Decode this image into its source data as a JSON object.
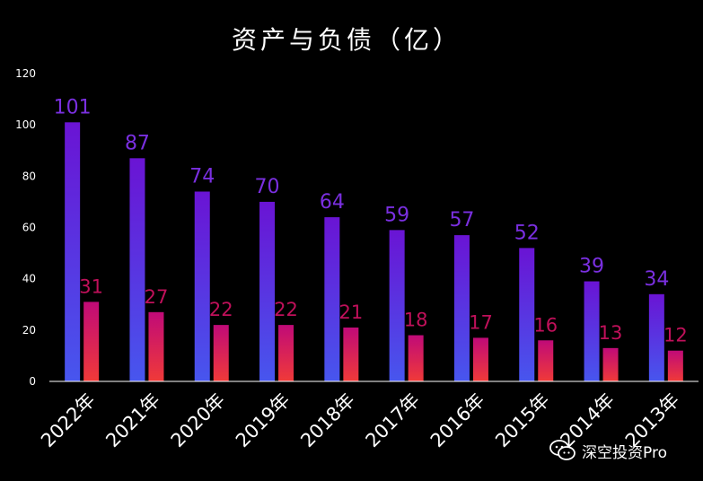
{
  "chart_data": {
    "type": "bar",
    "title": "资产与负债（亿）",
    "categories": [
      "2022年",
      "2021年",
      "2020年",
      "2019年",
      "2018年",
      "2017年",
      "2016年",
      "2015年",
      "2014年",
      "2013年"
    ],
    "series": [
      {
        "values": [
          101,
          87,
          74,
          70,
          64,
          59,
          57,
          52,
          39,
          34
        ],
        "color": "#6a1fd6",
        "label_color": "#7a2fe0"
      },
      {
        "values": [
          31,
          27,
          22,
          22,
          21,
          18,
          17,
          16,
          13,
          12
        ],
        "color": "#d1125e",
        "label_color": "#c0105a"
      }
    ],
    "ylim": [
      0,
      120
    ],
    "yticks": [
      0,
      20,
      40,
      60,
      80,
      100,
      120
    ],
    "grid": false,
    "legend": "none"
  },
  "watermark": {
    "text": "深空投资Pro",
    "icon": "wechat-icon"
  }
}
